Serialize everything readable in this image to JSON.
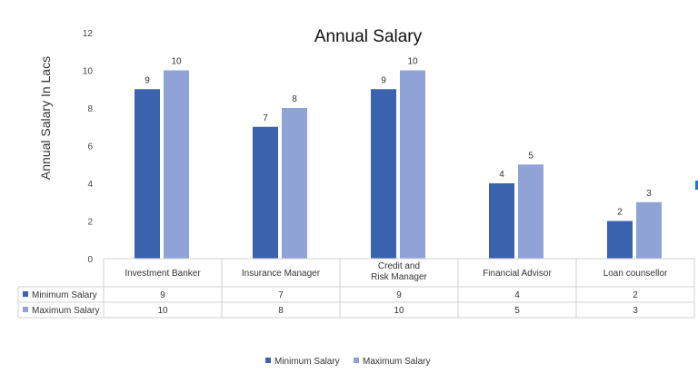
{
  "chart_data": {
    "type": "bar",
    "title": "Annual Salary",
    "xlabel": "",
    "ylabel": "Annual Salary In Lacs",
    "ylim": [
      0,
      12
    ],
    "yticks": [
      0,
      2,
      4,
      6,
      8,
      10,
      12
    ],
    "categories": [
      "Investment Banker",
      "Insurance Manager",
      "Credit and Risk Manager",
      "Financial Advisor",
      "Loan counsellor"
    ],
    "series": [
      {
        "name": "Minimum Salary",
        "color": "#3a62ad",
        "values": [
          9,
          7,
          9,
          4,
          2
        ]
      },
      {
        "name": "Maximum Salary",
        "color": "#8fa3d6",
        "values": [
          10,
          8,
          10,
          5,
          3
        ]
      }
    ],
    "grid": false,
    "legend": "bottom",
    "data_table": true
  }
}
